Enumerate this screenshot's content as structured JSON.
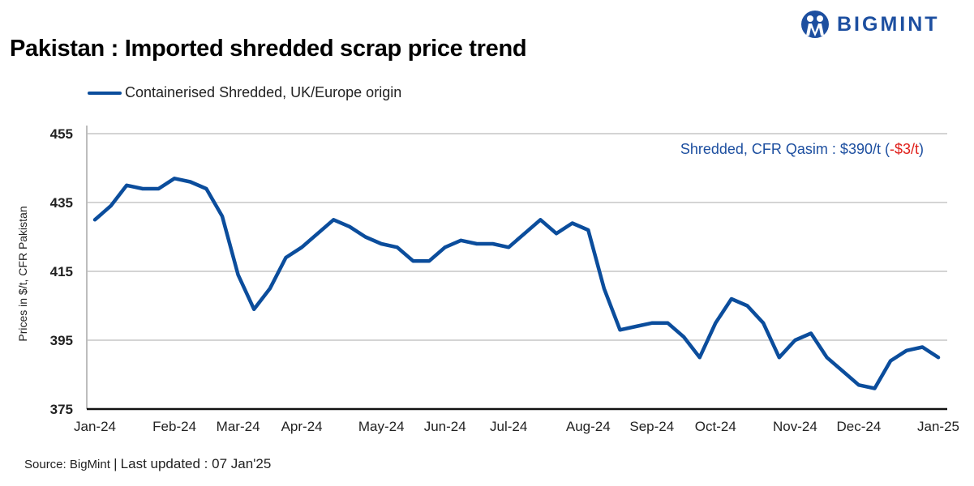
{
  "title": "Pakistan : Imported shredded scrap price trend",
  "logo": {
    "text": "BIGMINT",
    "color": "#1d4fa0"
  },
  "annotation": {
    "main": "Shredded, CFR Qasim : $390/t (",
    "change": "-$3/t",
    "close": ")",
    "change_color": "#e0201b"
  },
  "footer": {
    "source": "Source: BigMint",
    "separator": "|",
    "updated": "Last updated : 07 Jan'25"
  },
  "chart_data": {
    "type": "line",
    "title": "Pakistan : Imported shredded scrap price trend",
    "ylabel": "Prices in $/t, CFR Pakistan",
    "xlabel": "",
    "ylim": [
      375,
      455
    ],
    "yticks": [
      375,
      395,
      415,
      435,
      455
    ],
    "grid": true,
    "legend_position": "top-left",
    "x_tick_labels": [
      {
        "label": "Jan-24",
        "index": 0
      },
      {
        "label": "Feb-24",
        "index": 5
      },
      {
        "label": "Mar-24",
        "index": 9
      },
      {
        "label": "Apr-24",
        "index": 13
      },
      {
        "label": "May-24",
        "index": 18
      },
      {
        "label": "Jun-24",
        "index": 22
      },
      {
        "label": "Jul-24",
        "index": 26
      },
      {
        "label": "Aug-24",
        "index": 31
      },
      {
        "label": "Sep-24",
        "index": 35
      },
      {
        "label": "Oct-24",
        "index": 39
      },
      {
        "label": "Nov-24",
        "index": 44
      },
      {
        "label": "Dec-24",
        "index": 48
      },
      {
        "label": "Jan-25",
        "index": 53
      }
    ],
    "series": [
      {
        "name": "Containerised Shredded, UK/Europe origin",
        "color": "#0b4d9c",
        "values": [
          430,
          434,
          440,
          439,
          439,
          442,
          441,
          439,
          431,
          414,
          404,
          410,
          419,
          422,
          426,
          430,
          428,
          425,
          423,
          422,
          418,
          418,
          422,
          424,
          423,
          423,
          422,
          426,
          430,
          426,
          429,
          427,
          410,
          398,
          399,
          400,
          400,
          396,
          390,
          400,
          407,
          405,
          400,
          390,
          395,
          397,
          390,
          386,
          382,
          381,
          389,
          392,
          393,
          390
        ]
      }
    ]
  }
}
